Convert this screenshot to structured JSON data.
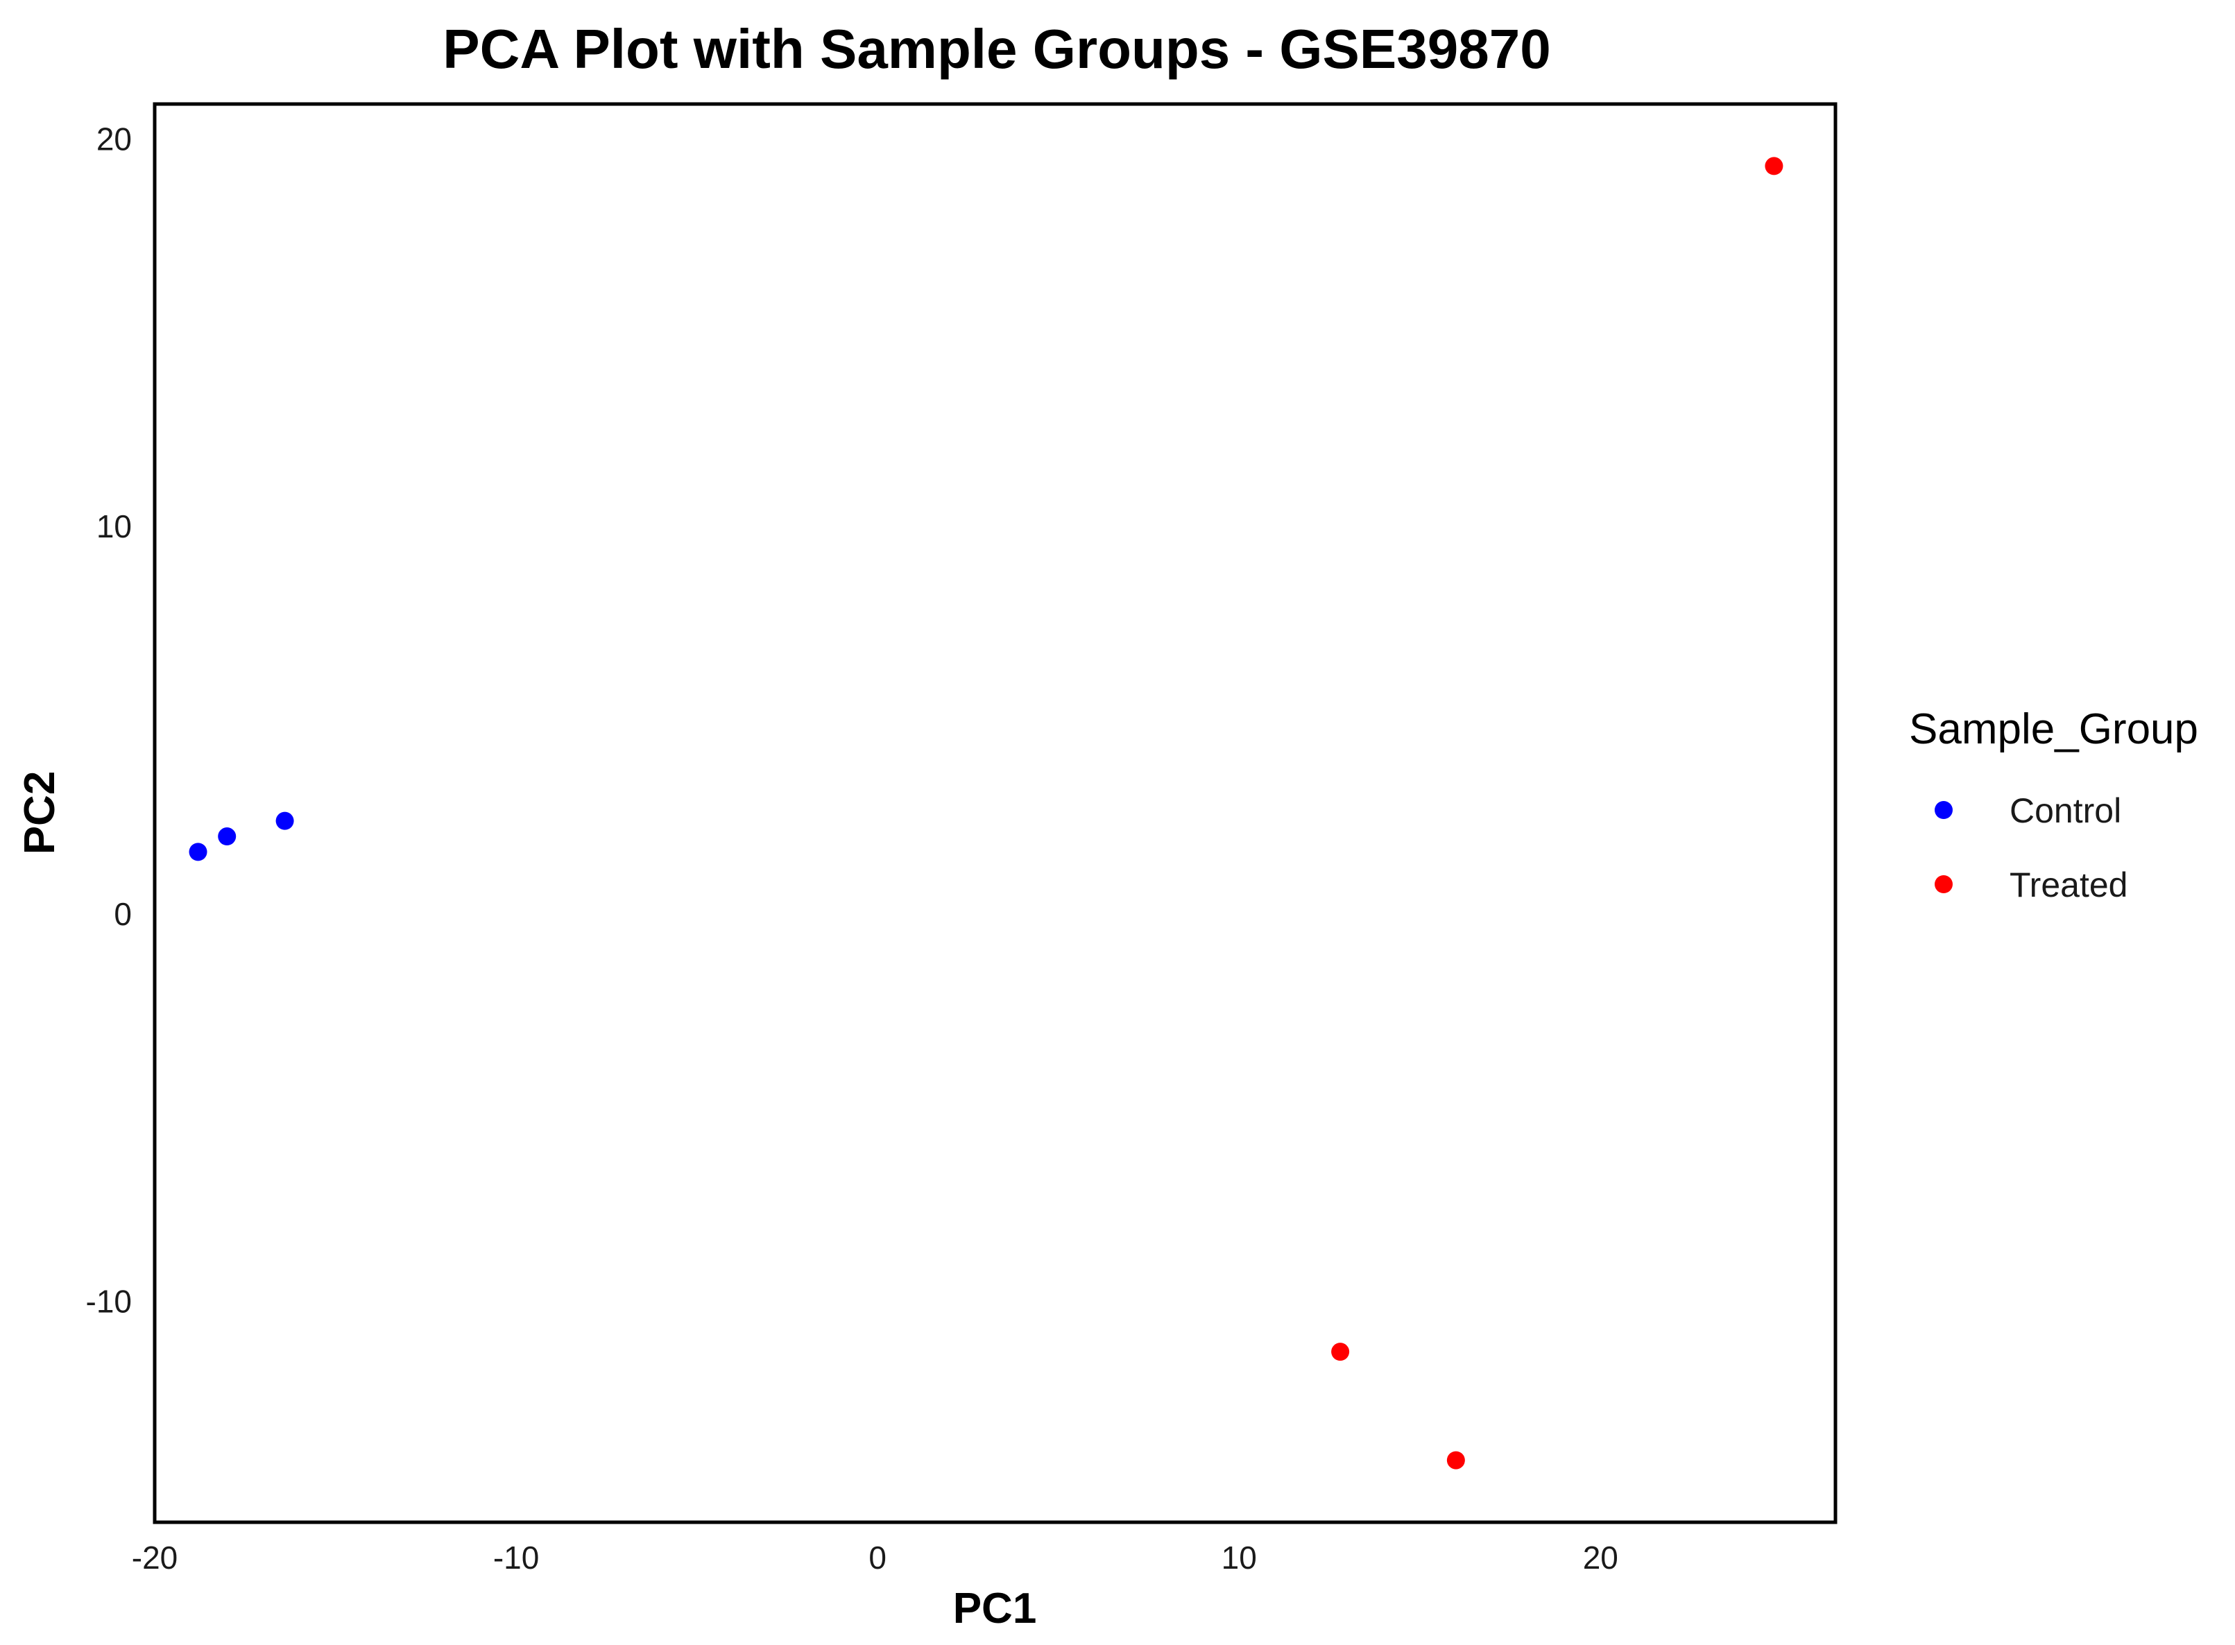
{
  "chart_data": {
    "type": "scatter",
    "title": "PCA Plot with Sample Groups - GSE39870",
    "xlabel": "PC1",
    "ylabel": "PC2",
    "xlim": [
      -20,
      26.5
    ],
    "ylim": [
      -15.7,
      20.9
    ],
    "x_ticks": [
      -20,
      -10,
      0,
      10,
      20
    ],
    "y_ticks": [
      -10,
      0,
      10,
      20
    ],
    "x_tick_labels": [
      "-20",
      "-10",
      "0",
      "10",
      "20"
    ],
    "y_tick_labels": [
      "-10",
      "0",
      "10",
      "20"
    ],
    "grid": false,
    "legend": {
      "title": "Sample_Group",
      "position": "right"
    },
    "series": [
      {
        "name": "Control",
        "color": "#0000FF",
        "points": [
          {
            "x": -18.8,
            "y": 1.6
          },
          {
            "x": -18.0,
            "y": 2.0
          },
          {
            "x": -16.4,
            "y": 2.4
          }
        ]
      },
      {
        "name": "Treated",
        "color": "#FF0000",
        "points": [
          {
            "x": 24.8,
            "y": 19.3
          },
          {
            "x": 12.8,
            "y": -11.3
          },
          {
            "x": 16.0,
            "y": -14.1
          }
        ]
      }
    ]
  }
}
